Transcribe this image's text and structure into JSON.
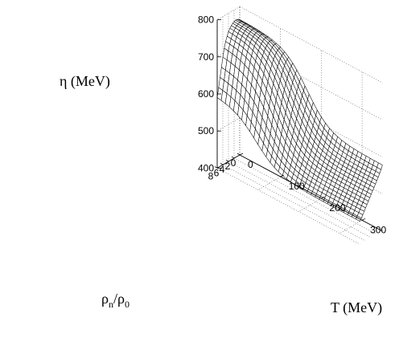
{
  "chart_data": {
    "type": "surface",
    "title": "",
    "zlabel": "η (MeV)",
    "xlabel_main": "ρ",
    "xlabel_sub_num": "n",
    "xlabel_slash": "/ρ",
    "xlabel_sub_den": "0",
    "ylabel": "T (MeV)",
    "x_ticks": [
      "0",
      "2",
      "4",
      "6",
      "8"
    ],
    "y_ticks": [
      "0",
      "100",
      "200",
      "300"
    ],
    "z_ticks": [
      "400",
      "500",
      "600",
      "700",
      "800"
    ],
    "xlim": [
      0,
      8
    ],
    "ylim": [
      0,
      350
    ],
    "zlim": [
      400,
      800
    ],
    "grid": "on",
    "x_samples": [
      0,
      0.5,
      1,
      1.5,
      2,
      2.5,
      3,
      3.5,
      4,
      4.5,
      5,
      5.5,
      6,
      6.5,
      7,
      7.5,
      8
    ],
    "t_samples": [
      0,
      10,
      20,
      30,
      40,
      50,
      60,
      70,
      80,
      90,
      100,
      110,
      120,
      130,
      140,
      150,
      160,
      170,
      180,
      190,
      200,
      210,
      220,
      230,
      240,
      250,
      260,
      270,
      280,
      290,
      300,
      310,
      320,
      330,
      340,
      350
    ],
    "eta_at_T0": [
      765,
      768,
      770,
      770,
      768,
      766,
      762,
      757,
      750,
      740,
      728,
      712,
      690,
      665,
      640,
      615,
      590
    ],
    "eta_at_T350": [
      578,
      568,
      560,
      552,
      545,
      538,
      531,
      524,
      517,
      510,
      503,
      496,
      489,
      482,
      475,
      468,
      462
    ],
    "transition_T_at_x0": 165,
    "transition_T_at_x8": 95,
    "transition_width": 28
  }
}
